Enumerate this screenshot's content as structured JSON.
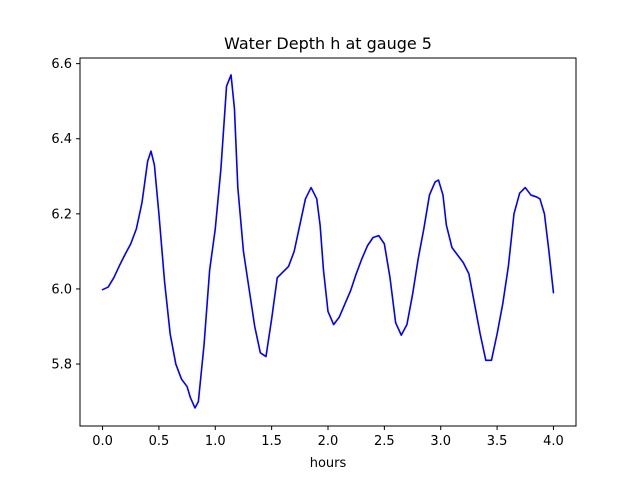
{
  "chart_data": {
    "type": "line",
    "title": "Water Depth h at gauge 5",
    "xlabel": "hours",
    "ylabel": "",
    "xlim": [
      -0.2,
      4.2
    ],
    "ylim": [
      5.635,
      6.615
    ],
    "grid": false,
    "legend": "none",
    "xticks": [
      0.0,
      0.5,
      1.0,
      1.5,
      2.0,
      2.5,
      3.0,
      3.5,
      4.0
    ],
    "xtick_labels": [
      "0.0",
      "0.5",
      "1.0",
      "1.5",
      "2.0",
      "2.5",
      "3.0",
      "3.5",
      "4.0"
    ],
    "yticks": [
      5.8,
      6.0,
      6.2,
      6.4,
      6.6
    ],
    "ytick_labels": [
      "5.8",
      "6.0",
      "6.2",
      "6.4",
      "6.6"
    ],
    "series": [
      {
        "color": "#0000ff",
        "x": [
          0.0,
          0.05,
          0.1,
          0.15,
          0.2,
          0.25,
          0.3,
          0.35,
          0.4,
          0.43,
          0.46,
          0.5,
          0.55,
          0.6,
          0.65,
          0.7,
          0.75,
          0.78,
          0.82,
          0.85,
          0.9,
          0.95,
          1.0,
          1.05,
          1.1,
          1.14,
          1.17,
          1.2,
          1.25,
          1.3,
          1.35,
          1.4,
          1.45,
          1.5,
          1.55,
          1.6,
          1.65,
          1.7,
          1.75,
          1.8,
          1.85,
          1.9,
          1.93,
          1.96,
          2.0,
          2.05,
          2.1,
          2.15,
          2.2,
          2.25,
          2.3,
          2.35,
          2.4,
          2.45,
          2.5,
          2.55,
          2.6,
          2.65,
          2.7,
          2.75,
          2.8,
          2.85,
          2.9,
          2.95,
          2.98,
          3.02,
          3.05,
          3.1,
          3.15,
          3.2,
          3.25,
          3.3,
          3.35,
          3.4,
          3.45,
          3.5,
          3.55,
          3.6,
          3.65,
          3.7,
          3.75,
          3.8,
          3.85,
          3.88,
          3.92,
          3.96,
          4.0
        ],
        "y": [
          5.998,
          6.005,
          6.03,
          6.062,
          6.092,
          6.12,
          6.16,
          6.23,
          6.34,
          6.367,
          6.33,
          6.2,
          6.02,
          5.88,
          5.8,
          5.76,
          5.74,
          5.71,
          5.683,
          5.7,
          5.85,
          6.05,
          6.16,
          6.32,
          6.54,
          6.57,
          6.48,
          6.27,
          6.1,
          6.0,
          5.9,
          5.83,
          5.82,
          5.92,
          6.03,
          6.045,
          6.06,
          6.1,
          6.17,
          6.24,
          6.27,
          6.24,
          6.17,
          6.05,
          5.94,
          5.905,
          5.925,
          5.96,
          5.995,
          6.04,
          6.08,
          6.115,
          6.137,
          6.142,
          6.12,
          6.03,
          5.91,
          5.877,
          5.905,
          5.985,
          6.08,
          6.16,
          6.25,
          6.285,
          6.29,
          6.25,
          6.17,
          6.11,
          6.09,
          6.07,
          6.04,
          5.96,
          5.88,
          5.81,
          5.81,
          5.88,
          5.96,
          6.06,
          6.2,
          6.255,
          6.27,
          6.25,
          6.245,
          6.24,
          6.2,
          6.1,
          5.99
        ]
      }
    ]
  }
}
